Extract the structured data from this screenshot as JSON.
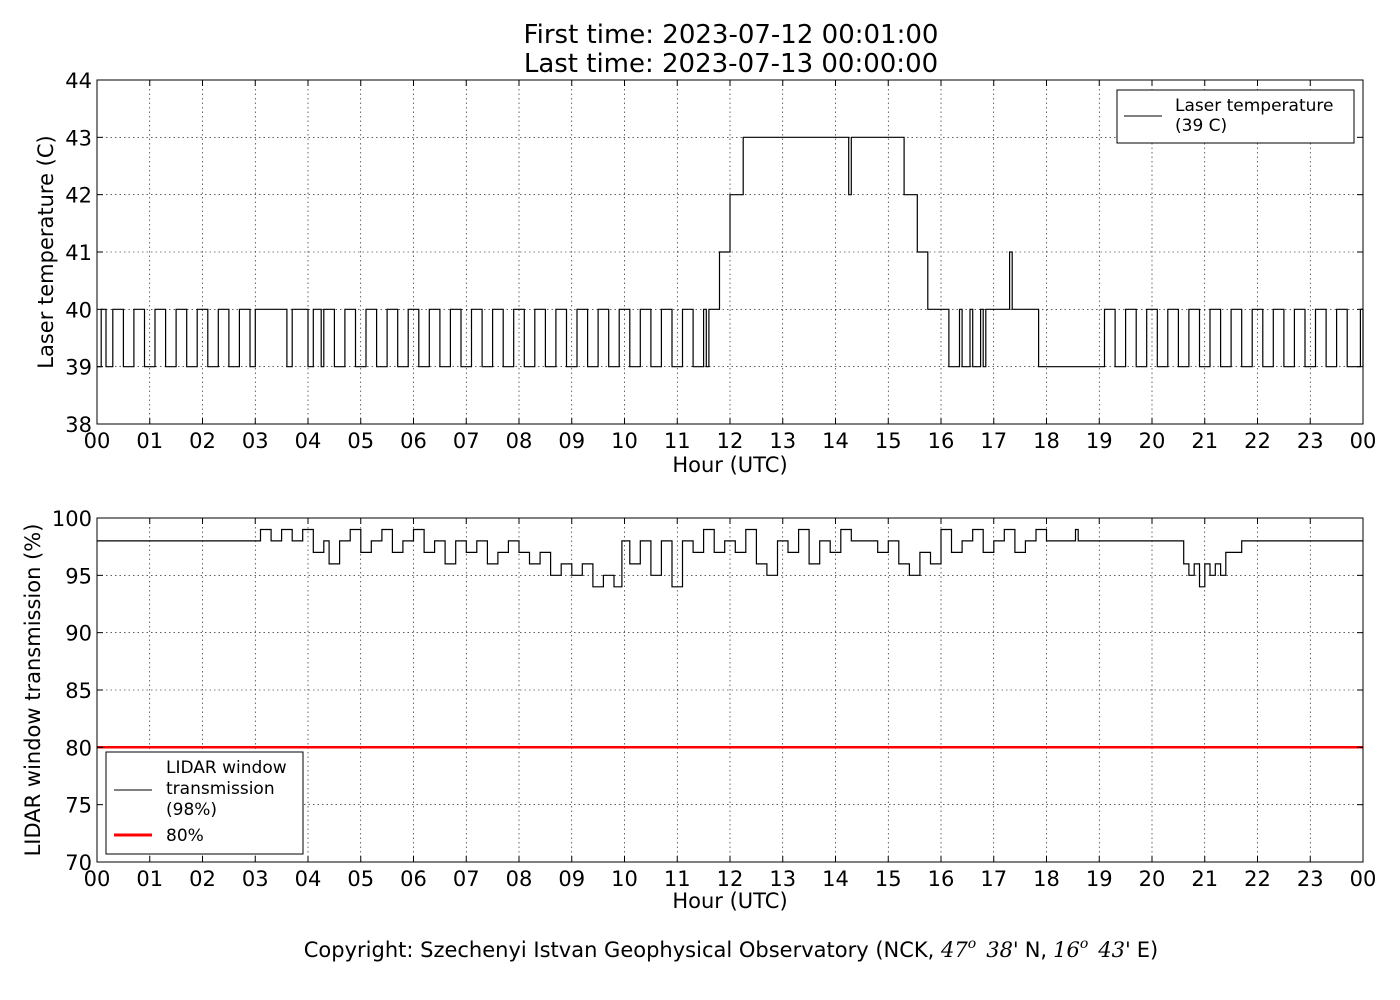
{
  "title": {
    "line1": "First time: 2023-07-12 00:01:00",
    "line2": "Last time: 2023-07-13 00:00:00"
  },
  "footer": {
    "prefix": "Copyright: Szechenyi Istvan Geophysical Observatory (NCK, ",
    "lat_deg": "47",
    "lat_sup": "o",
    "lat_min": "38'",
    "lat_hem": "N,",
    "lon_deg": "16",
    "lon_sup": "o",
    "lon_min": "43'",
    "lon_hem": "E)"
  },
  "colors": {
    "series": "#000000",
    "threshold": "#ff0000",
    "grid": "#000000",
    "background": "#ffffff"
  },
  "chart_data": [
    {
      "type": "line",
      "xlabel": "Hour (UTC)",
      "ylabel": "Laser temperature (C)",
      "xlim": [
        0,
        24
      ],
      "ylim": [
        38,
        44
      ],
      "x_ticks": [
        "00",
        "01",
        "02",
        "03",
        "04",
        "05",
        "06",
        "07",
        "08",
        "09",
        "10",
        "11",
        "12",
        "13",
        "14",
        "15",
        "16",
        "17",
        "18",
        "19",
        "20",
        "21",
        "22",
        "23",
        "00"
      ],
      "y_ticks": [
        38,
        39,
        40,
        41,
        42,
        43,
        44
      ],
      "grid": true,
      "legend_position": "top-right",
      "series": [
        {
          "name": "Laser temperature\n(39 C)",
          "color": "#000000",
          "points": [
            [
              0.0,
              39
            ],
            [
              0.08,
              40
            ],
            [
              0.17,
              39
            ],
            [
              0.3,
              40
            ],
            [
              0.5,
              39
            ],
            [
              0.7,
              40
            ],
            [
              0.9,
              39
            ],
            [
              1.1,
              40
            ],
            [
              1.3,
              39
            ],
            [
              1.5,
              40
            ],
            [
              1.7,
              39
            ],
            [
              1.9,
              40
            ],
            [
              2.1,
              39
            ],
            [
              2.3,
              40
            ],
            [
              2.5,
              39
            ],
            [
              2.7,
              40
            ],
            [
              2.9,
              39
            ],
            [
              3.0,
              40
            ],
            [
              3.6,
              39
            ],
            [
              3.7,
              40
            ],
            [
              4.0,
              39
            ],
            [
              4.1,
              40
            ],
            [
              4.25,
              39
            ],
            [
              4.3,
              40
            ],
            [
              4.5,
              39
            ],
            [
              4.7,
              40
            ],
            [
              4.9,
              39
            ],
            [
              5.1,
              40
            ],
            [
              5.3,
              39
            ],
            [
              5.5,
              40
            ],
            [
              5.7,
              39
            ],
            [
              5.9,
              40
            ],
            [
              6.1,
              39
            ],
            [
              6.3,
              40
            ],
            [
              6.5,
              39
            ],
            [
              6.7,
              40
            ],
            [
              6.9,
              39
            ],
            [
              7.1,
              40
            ],
            [
              7.3,
              39
            ],
            [
              7.5,
              40
            ],
            [
              7.7,
              39
            ],
            [
              7.9,
              40
            ],
            [
              8.1,
              39
            ],
            [
              8.3,
              40
            ],
            [
              8.5,
              39
            ],
            [
              8.7,
              40
            ],
            [
              8.9,
              39
            ],
            [
              9.1,
              40
            ],
            [
              9.3,
              39
            ],
            [
              9.5,
              40
            ],
            [
              9.7,
              39
            ],
            [
              9.9,
              40
            ],
            [
              10.1,
              39
            ],
            [
              10.3,
              40
            ],
            [
              10.5,
              39
            ],
            [
              10.7,
              40
            ],
            [
              10.9,
              39
            ],
            [
              11.1,
              40
            ],
            [
              11.3,
              39
            ],
            [
              11.5,
              40
            ],
            [
              11.55,
              39
            ],
            [
              11.6,
              40
            ],
            [
              11.8,
              41
            ],
            [
              12.0,
              42
            ],
            [
              12.25,
              43
            ],
            [
              14.25,
              42
            ],
            [
              14.3,
              43
            ],
            [
              15.3,
              42
            ],
            [
              15.55,
              41
            ],
            [
              15.75,
              40
            ],
            [
              16.15,
              39
            ],
            [
              16.35,
              40
            ],
            [
              16.4,
              39
            ],
            [
              16.55,
              40
            ],
            [
              16.6,
              39
            ],
            [
              16.75,
              40
            ],
            [
              16.8,
              39
            ],
            [
              16.85,
              40
            ],
            [
              17.3,
              41
            ],
            [
              17.35,
              40
            ],
            [
              17.85,
              39
            ],
            [
              19.1,
              40
            ],
            [
              19.3,
              39
            ],
            [
              19.5,
              40
            ],
            [
              19.7,
              39
            ],
            [
              19.9,
              40
            ],
            [
              20.1,
              39
            ],
            [
              20.3,
              40
            ],
            [
              20.5,
              39
            ],
            [
              20.7,
              40
            ],
            [
              20.9,
              39
            ],
            [
              21.1,
              40
            ],
            [
              21.3,
              39
            ],
            [
              21.5,
              40
            ],
            [
              21.7,
              39
            ],
            [
              21.9,
              40
            ],
            [
              22.1,
              39
            ],
            [
              22.3,
              40
            ],
            [
              22.5,
              39
            ],
            [
              22.7,
              40
            ],
            [
              22.9,
              39
            ],
            [
              23.1,
              40
            ],
            [
              23.3,
              39
            ],
            [
              23.5,
              40
            ],
            [
              23.7,
              39
            ],
            [
              23.95,
              40
            ],
            [
              24.0,
              39
            ]
          ]
        }
      ]
    },
    {
      "type": "line",
      "xlabel": "Hour (UTC)",
      "ylabel": "LIDAR window transmission (%)",
      "xlim": [
        0,
        24
      ],
      "ylim": [
        70,
        100
      ],
      "x_ticks": [
        "00",
        "01",
        "02",
        "03",
        "04",
        "05",
        "06",
        "07",
        "08",
        "09",
        "10",
        "11",
        "12",
        "13",
        "14",
        "15",
        "16",
        "17",
        "18",
        "19",
        "20",
        "21",
        "22",
        "23",
        "00"
      ],
      "y_ticks": [
        70,
        75,
        80,
        85,
        90,
        95,
        100
      ],
      "grid": true,
      "legend_position": "bottom-left",
      "series": [
        {
          "name": "LIDAR window\ntransmission\n(98%)",
          "color": "#000000",
          "points": [
            [
              0.0,
              98
            ],
            [
              3.0,
              98
            ],
            [
              3.1,
              99
            ],
            [
              3.3,
              98
            ],
            [
              3.5,
              99
            ],
            [
              3.7,
              98
            ],
            [
              3.9,
              99
            ],
            [
              4.1,
              97
            ],
            [
              4.3,
              98
            ],
            [
              4.4,
              96
            ],
            [
              4.6,
              98
            ],
            [
              4.8,
              99
            ],
            [
              5.0,
              97
            ],
            [
              5.2,
              98
            ],
            [
              5.4,
              99
            ],
            [
              5.6,
              97
            ],
            [
              5.8,
              98
            ],
            [
              6.0,
              99
            ],
            [
              6.2,
              97
            ],
            [
              6.4,
              98
            ],
            [
              6.6,
              96
            ],
            [
              6.8,
              98
            ],
            [
              7.0,
              97
            ],
            [
              7.2,
              98
            ],
            [
              7.4,
              96
            ],
            [
              7.6,
              97
            ],
            [
              7.8,
              98
            ],
            [
              8.0,
              97
            ],
            [
              8.2,
              96
            ],
            [
              8.4,
              97
            ],
            [
              8.6,
              95
            ],
            [
              8.8,
              96
            ],
            [
              9.0,
              95
            ],
            [
              9.2,
              96
            ],
            [
              9.4,
              94
            ],
            [
              9.6,
              95
            ],
            [
              9.8,
              94
            ],
            [
              9.95,
              98
            ],
            [
              10.1,
              96
            ],
            [
              10.3,
              98
            ],
            [
              10.5,
              95
            ],
            [
              10.7,
              98
            ],
            [
              10.9,
              94
            ],
            [
              11.1,
              98
            ],
            [
              11.3,
              97
            ],
            [
              11.5,
              99
            ],
            [
              11.7,
              97
            ],
            [
              11.9,
              98
            ],
            [
              12.1,
              97
            ],
            [
              12.3,
              99
            ],
            [
              12.5,
              96
            ],
            [
              12.7,
              95
            ],
            [
              12.9,
              98
            ],
            [
              13.1,
              97
            ],
            [
              13.3,
              99
            ],
            [
              13.5,
              96
            ],
            [
              13.7,
              98
            ],
            [
              13.9,
              97
            ],
            [
              14.1,
              99
            ],
            [
              14.3,
              98
            ],
            [
              14.6,
              98
            ],
            [
              14.8,
              97
            ],
            [
              15.0,
              98
            ],
            [
              15.2,
              96
            ],
            [
              15.4,
              95
            ],
            [
              15.6,
              97
            ],
            [
              15.8,
              96
            ],
            [
              16.0,
              99
            ],
            [
              16.2,
              97
            ],
            [
              16.4,
              98
            ],
            [
              16.6,
              99
            ],
            [
              16.8,
              97
            ],
            [
              17.0,
              98
            ],
            [
              17.2,
              99
            ],
            [
              17.4,
              97
            ],
            [
              17.6,
              98
            ],
            [
              17.8,
              99
            ],
            [
              18.0,
              98
            ],
            [
              18.5,
              98
            ],
            [
              18.55,
              99
            ],
            [
              18.6,
              98
            ],
            [
              20.55,
              98
            ],
            [
              20.6,
              96
            ],
            [
              20.7,
              95
            ],
            [
              20.8,
              96
            ],
            [
              20.9,
              94
            ],
            [
              21.0,
              96
            ],
            [
              21.1,
              95
            ],
            [
              21.2,
              96
            ],
            [
              21.3,
              95
            ],
            [
              21.4,
              97
            ],
            [
              21.7,
              98
            ],
            [
              24.0,
              98
            ]
          ]
        },
        {
          "name": "80%",
          "color": "#ff0000",
          "points": [
            [
              0,
              80
            ],
            [
              24,
              80
            ]
          ]
        }
      ]
    }
  ]
}
